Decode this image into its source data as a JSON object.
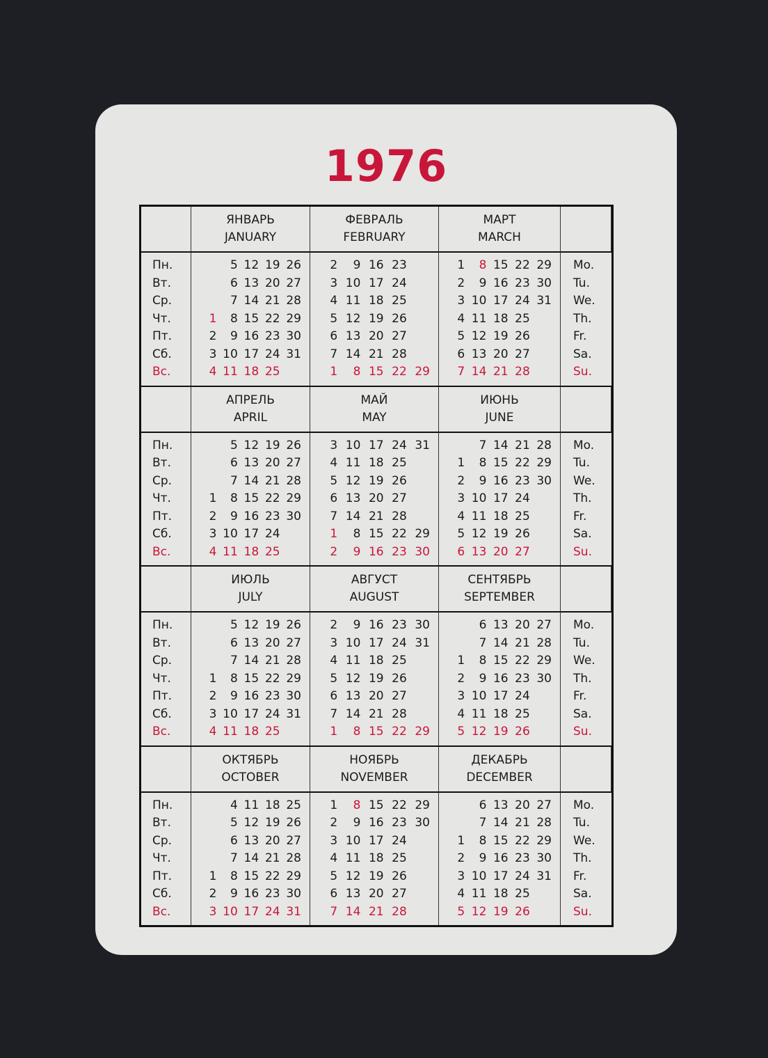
{
  "year": "1976",
  "colors": {
    "red": "#c8163a",
    "text": "#1a1a1a",
    "card": "#e6e6e4",
    "background": "#1d1f25"
  },
  "weekdays_ru": [
    "Пн.",
    "Вт.",
    "Ср.",
    "Чт.",
    "Пт.",
    "Сб.",
    "Вс."
  ],
  "weekdays_en": [
    "Mo.",
    "Tu.",
    "We.",
    "Th.",
    "Fr.",
    "Sa.",
    "Su."
  ],
  "months": [
    {
      "ru": "ЯНВАРЬ",
      "en": "JANUARY",
      "red": [
        "1"
      ],
      "rows": [
        [
          "",
          "5",
          "12",
          "19",
          "26"
        ],
        [
          "",
          "6",
          "13",
          "20",
          "27"
        ],
        [
          "",
          "7",
          "14",
          "21",
          "28"
        ],
        [
          "1",
          "8",
          "15",
          "22",
          "29"
        ],
        [
          "2",
          "9",
          "16",
          "23",
          "30"
        ],
        [
          "3",
          "10",
          "17",
          "24",
          "31"
        ],
        [
          "4",
          "11",
          "18",
          "25"
        ]
      ]
    },
    {
      "ru": "ФЕВРАЛЬ",
      "en": "FEBRUARY",
      "red": [],
      "rows": [
        [
          "2",
          "9",
          "16",
          "23"
        ],
        [
          "3",
          "10",
          "17",
          "24"
        ],
        [
          "4",
          "11",
          "18",
          "25"
        ],
        [
          "5",
          "12",
          "19",
          "26"
        ],
        [
          "6",
          "13",
          "20",
          "27"
        ],
        [
          "7",
          "14",
          "21",
          "28"
        ],
        [
          "1",
          "8",
          "15",
          "22",
          "29"
        ]
      ]
    },
    {
      "ru": "МАРТ",
      "en": "MARCH",
      "red": [
        "8"
      ],
      "rows": [
        [
          "1",
          "8",
          "15",
          "22",
          "29"
        ],
        [
          "2",
          "9",
          "16",
          "23",
          "30"
        ],
        [
          "3",
          "10",
          "17",
          "24",
          "31"
        ],
        [
          "4",
          "11",
          "18",
          "25"
        ],
        [
          "5",
          "12",
          "19",
          "26"
        ],
        [
          "6",
          "13",
          "20",
          "27"
        ],
        [
          "7",
          "14",
          "21",
          "28"
        ]
      ]
    },
    {
      "ru": "АПРЕЛЬ",
      "en": "APRIL",
      "red": [],
      "rows": [
        [
          "",
          "5",
          "12",
          "19",
          "26"
        ],
        [
          "",
          "6",
          "13",
          "20",
          "27"
        ],
        [
          "",
          "7",
          "14",
          "21",
          "28"
        ],
        [
          "1",
          "8",
          "15",
          "22",
          "29"
        ],
        [
          "2",
          "9",
          "16",
          "23",
          "30"
        ],
        [
          "3",
          "10",
          "17",
          "24"
        ],
        [
          "4",
          "11",
          "18",
          "25"
        ]
      ]
    },
    {
      "ru": "МАЙ",
      "en": "MAY",
      "red": [
        "1"
      ],
      "rows": [
        [
          "3",
          "10",
          "17",
          "24",
          "31"
        ],
        [
          "4",
          "11",
          "18",
          "25"
        ],
        [
          "5",
          "12",
          "19",
          "26"
        ],
        [
          "6",
          "13",
          "20",
          "27"
        ],
        [
          "7",
          "14",
          "21",
          "28"
        ],
        [
          "1",
          "8",
          "15",
          "22",
          "29"
        ],
        [
          "2",
          "9",
          "16",
          "23",
          "30"
        ]
      ]
    },
    {
      "ru": "ИЮНЬ",
      "en": "JUNE",
      "red": [],
      "rows": [
        [
          "",
          "7",
          "14",
          "21",
          "28"
        ],
        [
          "1",
          "8",
          "15",
          "22",
          "29"
        ],
        [
          "2",
          "9",
          "16",
          "23",
          "30"
        ],
        [
          "3",
          "10",
          "17",
          "24"
        ],
        [
          "4",
          "11",
          "18",
          "25"
        ],
        [
          "5",
          "12",
          "19",
          "26"
        ],
        [
          "6",
          "13",
          "20",
          "27"
        ]
      ]
    },
    {
      "ru": "ИЮЛЬ",
      "en": "JULY",
      "red": [],
      "rows": [
        [
          "",
          "5",
          "12",
          "19",
          "26"
        ],
        [
          "",
          "6",
          "13",
          "20",
          "27"
        ],
        [
          "",
          "7",
          "14",
          "21",
          "28"
        ],
        [
          "1",
          "8",
          "15",
          "22",
          "29"
        ],
        [
          "2",
          "9",
          "16",
          "23",
          "30"
        ],
        [
          "3",
          "10",
          "17",
          "24",
          "31"
        ],
        [
          "4",
          "11",
          "18",
          "25"
        ]
      ]
    },
    {
      "ru": "АВГУСТ",
      "en": "AUGUST",
      "red": [],
      "rows": [
        [
          "2",
          "9",
          "16",
          "23",
          "30"
        ],
        [
          "3",
          "10",
          "17",
          "24",
          "31"
        ],
        [
          "4",
          "11",
          "18",
          "25"
        ],
        [
          "5",
          "12",
          "19",
          "26"
        ],
        [
          "6",
          "13",
          "20",
          "27"
        ],
        [
          "7",
          "14",
          "21",
          "28"
        ],
        [
          "1",
          "8",
          "15",
          "22",
          "29"
        ]
      ]
    },
    {
      "ru": "СЕНТЯБРЬ",
      "en": "SEPTEMBER",
      "red": [],
      "rows": [
        [
          "",
          "6",
          "13",
          "20",
          "27"
        ],
        [
          "",
          "7",
          "14",
          "21",
          "28"
        ],
        [
          "1",
          "8",
          "15",
          "22",
          "29"
        ],
        [
          "2",
          "9",
          "16",
          "23",
          "30"
        ],
        [
          "3",
          "10",
          "17",
          "24"
        ],
        [
          "4",
          "11",
          "18",
          "25"
        ],
        [
          "5",
          "12",
          "19",
          "26"
        ]
      ]
    },
    {
      "ru": "ОКТЯБРЬ",
      "en": "OCTOBER",
      "red": [],
      "rows": [
        [
          "",
          "4",
          "11",
          "18",
          "25"
        ],
        [
          "",
          "5",
          "12",
          "19",
          "26"
        ],
        [
          "",
          "6",
          "13",
          "20",
          "27"
        ],
        [
          "",
          "7",
          "14",
          "21",
          "28"
        ],
        [
          "1",
          "8",
          "15",
          "22",
          "29"
        ],
        [
          "2",
          "9",
          "16",
          "23",
          "30"
        ],
        [
          "3",
          "10",
          "17",
          "24",
          "31"
        ]
      ]
    },
    {
      "ru": "НОЯБРЬ",
      "en": "NOVEMBER",
      "red": [
        "8"
      ],
      "rows": [
        [
          "1",
          "8",
          "15",
          "22",
          "29"
        ],
        [
          "2",
          "9",
          "16",
          "23",
          "30"
        ],
        [
          "3",
          "10",
          "17",
          "24"
        ],
        [
          "4",
          "11",
          "18",
          "25"
        ],
        [
          "5",
          "12",
          "19",
          "26"
        ],
        [
          "6",
          "13",
          "20",
          "27"
        ],
        [
          "7",
          "14",
          "21",
          "28"
        ]
      ]
    },
    {
      "ru": "ДЕКАБРЬ",
      "en": "DECEMBER",
      "red": [],
      "rows": [
        [
          "",
          "6",
          "13",
          "20",
          "27"
        ],
        [
          "",
          "7",
          "14",
          "21",
          "28"
        ],
        [
          "1",
          "8",
          "15",
          "22",
          "29"
        ],
        [
          "2",
          "9",
          "16",
          "23",
          "30"
        ],
        [
          "3",
          "10",
          "17",
          "24",
          "31"
        ],
        [
          "4",
          "11",
          "18",
          "25"
        ],
        [
          "5",
          "12",
          "19",
          "26"
        ]
      ]
    }
  ]
}
